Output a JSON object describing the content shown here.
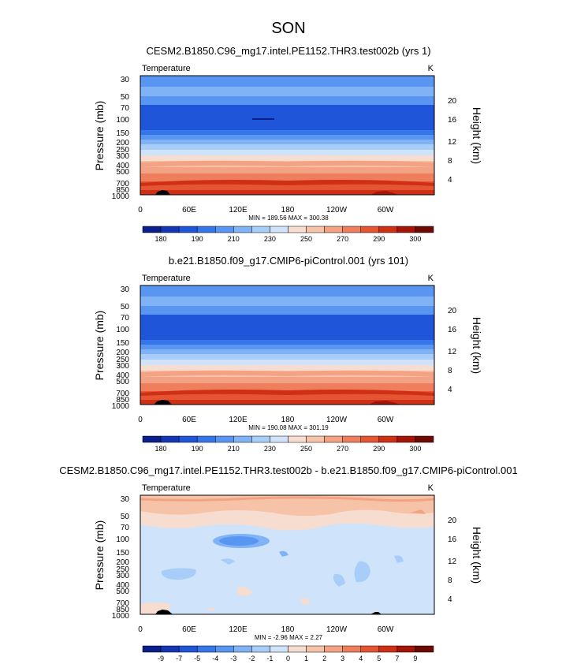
{
  "figure_title": "SON",
  "chart_data": [
    {
      "type": "heatmap",
      "title": "CESM2.B1850.C96_mg17.intel.PE1152.THR3.test002b (yrs 1)",
      "variable": "Temperature",
      "units": "K",
      "ylabel": "Pressure (mb)",
      "y2label": "Height (km)",
      "xlabel": "",
      "x_ticks": [
        "0",
        "60E",
        "120E",
        "180",
        "120W",
        "60W"
      ],
      "pressure_ticks": [
        "30",
        "50",
        "70",
        "100",
        "150",
        "200",
        "250",
        "300",
        "400",
        "500",
        "700",
        "850",
        "1000"
      ],
      "height_ticks": [
        "4",
        "8",
        "12",
        "16",
        "20"
      ],
      "stats": "MIN = 189.56  MAX = 300.38",
      "colorbar_labels": [
        "180",
        "190",
        "210",
        "230",
        "250",
        "270",
        "290",
        "300"
      ],
      "colors": [
        "#0a1e8c",
        "#1536b4",
        "#1f55d8",
        "#3577ea",
        "#5996f2",
        "#80b2f6",
        "#a8cdf9",
        "#cfe3fb",
        "#f6ddd0",
        "#f6c2a8",
        "#f3a283",
        "#ee7e5c",
        "#e55534",
        "#cf2f14",
        "#a51407",
        "#6e0a04"
      ]
    },
    {
      "type": "heatmap",
      "title": "b.e21.B1850.f09_g17.CMIP6-piControl.001 (yrs 101)",
      "variable": "Temperature",
      "units": "K",
      "ylabel": "Pressure (mb)",
      "y2label": "Height (km)",
      "xlabel": "",
      "x_ticks": [
        "0",
        "60E",
        "120E",
        "180",
        "120W",
        "60W"
      ],
      "pressure_ticks": [
        "30",
        "50",
        "70",
        "100",
        "150",
        "200",
        "250",
        "300",
        "400",
        "500",
        "700",
        "850",
        "1000"
      ],
      "height_ticks": [
        "4",
        "8",
        "12",
        "16",
        "20"
      ],
      "stats": "MIN = 190.08  MAX = 301.19",
      "colorbar_labels": [
        "180",
        "190",
        "210",
        "230",
        "250",
        "270",
        "290",
        "300"
      ],
      "colors": [
        "#0a1e8c",
        "#1536b4",
        "#1f55d8",
        "#3577ea",
        "#5996f2",
        "#80b2f6",
        "#a8cdf9",
        "#cfe3fb",
        "#f6ddd0",
        "#f6c2a8",
        "#f3a283",
        "#ee7e5c",
        "#e55534",
        "#cf2f14",
        "#a51407",
        "#6e0a04"
      ]
    },
    {
      "type": "heatmap",
      "title": "CESM2.B1850.C96_mg17.intel.PE1152.THR3.test002b - b.e21.B1850.f09_g17.CMIP6-piControl.001",
      "variable": "Temperature",
      "units": "K",
      "ylabel": "Pressure (mb)",
      "y2label": "Height (km)",
      "xlabel": "",
      "x_ticks": [
        "0",
        "60E",
        "120E",
        "180",
        "120W",
        "60W"
      ],
      "pressure_ticks": [
        "30",
        "50",
        "70",
        "100",
        "150",
        "200",
        "250",
        "300",
        "400",
        "500",
        "700",
        "850",
        "1000"
      ],
      "height_ticks": [
        "4",
        "8",
        "12",
        "16",
        "20"
      ],
      "stats": "MIN = -2.96  MAX =  2.27",
      "colorbar_labels": [
        "-9",
        "-7",
        "-5",
        "-4",
        "-3",
        "-2",
        "-1",
        "0",
        "1",
        "2",
        "3",
        "4",
        "5",
        "7",
        "9"
      ],
      "colors": [
        "#0a1e8c",
        "#1536b4",
        "#1f55d8",
        "#3577ea",
        "#5996f2",
        "#80b2f6",
        "#a8cdf9",
        "#cfe3fb",
        "#f6ddd0",
        "#f6c2a8",
        "#f3a283",
        "#ee7e5c",
        "#e55534",
        "#cf2f14",
        "#a51407",
        "#6e0a04"
      ]
    }
  ]
}
